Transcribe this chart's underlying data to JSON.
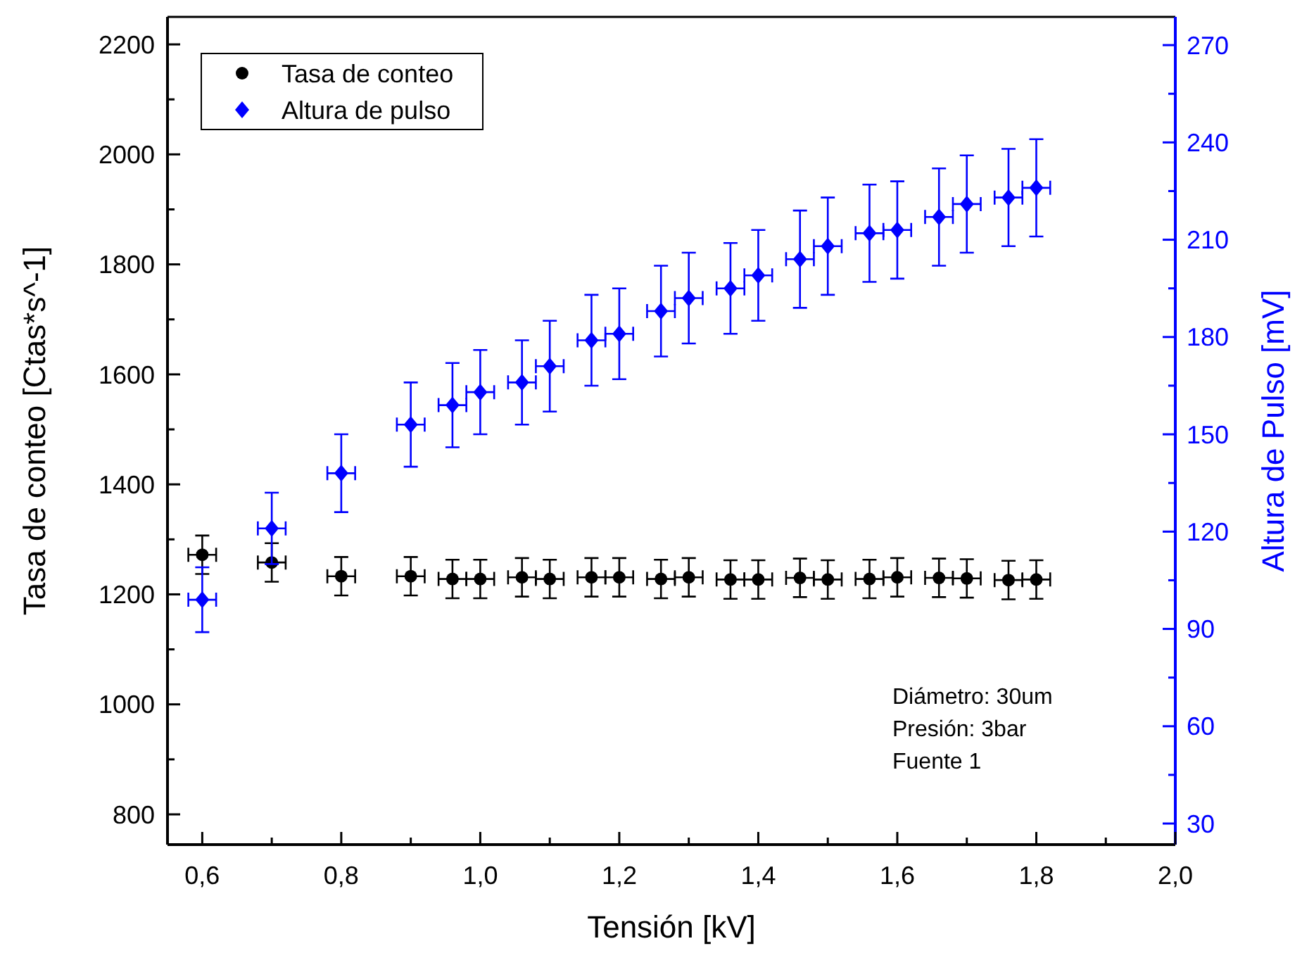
{
  "chart_data": {
    "type": "scatter",
    "xlabel": "Tensión [kV]",
    "ylabel": "Tasa de conteo [Ctas*s^-1]",
    "y2label": "Altura de Pulso [mV]",
    "xlim": [
      0.55,
      2.0
    ],
    "xticks": [
      {
        "value": 0.6,
        "label": "0,6"
      },
      {
        "value": 0.7,
        "label": null
      },
      {
        "value": 0.8,
        "label": "0,8"
      },
      {
        "value": 0.9,
        "label": null
      },
      {
        "value": 1.0,
        "label": "1,0"
      },
      {
        "value": 1.1,
        "label": null
      },
      {
        "value": 1.2,
        "label": "1,2"
      },
      {
        "value": 1.3,
        "label": null
      },
      {
        "value": 1.4,
        "label": "1,4"
      },
      {
        "value": 1.5,
        "label": null
      },
      {
        "value": 1.6,
        "label": "1,6"
      },
      {
        "value": 1.7,
        "label": null
      },
      {
        "value": 1.8,
        "label": "1,8"
      },
      {
        "value": 1.9,
        "label": null
      },
      {
        "value": 2.0,
        "label": "2,0"
      }
    ],
    "ylim": [
      745,
      2250
    ],
    "yticks": [
      800,
      {
        "value": 900,
        "label": null
      },
      1000,
      {
        "value": 1100,
        "label": null
      },
      1200,
      {
        "value": 1300,
        "label": null
      },
      1400,
      {
        "value": 1500,
        "label": null
      },
      1600,
      {
        "value": 1700,
        "label": null
      },
      1800,
      {
        "value": 1900,
        "label": null
      },
      2000,
      {
        "value": 2100,
        "label": null
      },
      2200
    ],
    "y2lim": [
      23.5,
      278.7
    ],
    "y2ticks": [
      30,
      {
        "value": 45,
        "label": null
      },
      60,
      {
        "value": 75,
        "label": null
      },
      90,
      {
        "value": 105,
        "label": null
      },
      120,
      {
        "value": 135,
        "label": null
      },
      150,
      {
        "value": 165,
        "label": null
      },
      180,
      {
        "value": 195,
        "label": null
      },
      210,
      {
        "value": 225,
        "label": null
      },
      240,
      {
        "value": 255,
        "label": null
      },
      270
    ],
    "legend": "top left",
    "grid": false,
    "series": [
      {
        "name": "Tasa de conteo",
        "color": "#000000",
        "marker": "circle",
        "x": [
          0.6,
          0.7,
          0.8,
          0.9,
          0.96,
          1.0,
          1.06,
          1.1,
          1.16,
          1.2,
          1.26,
          1.3,
          1.36,
          1.4,
          1.46,
          1.5,
          1.56,
          1.6,
          1.66,
          1.7,
          1.76,
          1.8
        ],
        "values": [
          1272,
          1258,
          1233,
          1233,
          1228,
          1228,
          1231,
          1228,
          1231,
          1231,
          1228,
          1231,
          1227,
          1227,
          1230,
          1227,
          1228,
          1231,
          1230,
          1229,
          1226,
          1227
        ],
        "errors": [
          35,
          35,
          35,
          35,
          35,
          35,
          35,
          35,
          35,
          35,
          35,
          35,
          35,
          35,
          35,
          35,
          35,
          35,
          35,
          35,
          35,
          35
        ],
        "xerrors": [
          0.02,
          0.02,
          0.02,
          0.02,
          0.02,
          0.02,
          0.02,
          0.02,
          0.02,
          0.02,
          0.02,
          0.02,
          0.02,
          0.02,
          0.02,
          0.02,
          0.02,
          0.02,
          0.02,
          0.02,
          0.02,
          0.02
        ]
      },
      {
        "name": "Altura de pulso",
        "color": "#0000ff",
        "marker": "diamond",
        "axis": "y2",
        "x": [
          0.6,
          0.7,
          0.8,
          0.9,
          0.96,
          1.0,
          1.06,
          1.1,
          1.16,
          1.2,
          1.26,
          1.3,
          1.36,
          1.4,
          1.46,
          1.5,
          1.56,
          1.6,
          1.66,
          1.7,
          1.76,
          1.8
        ],
        "values": [
          99,
          121,
          138,
          153,
          159,
          163,
          166,
          171,
          179,
          181,
          188,
          192,
          195,
          199,
          204,
          208,
          212,
          213,
          217,
          221,
          223,
          226
        ],
        "errors": [
          10,
          11,
          12,
          13,
          13,
          13,
          13,
          14,
          14,
          14,
          14,
          14,
          14,
          14,
          15,
          15,
          15,
          15,
          15,
          15,
          15,
          15
        ],
        "xerrors": [
          0.02,
          0.02,
          0.02,
          0.02,
          0.02,
          0.02,
          0.02,
          0.02,
          0.02,
          0.02,
          0.02,
          0.02,
          0.02,
          0.02,
          0.02,
          0.02,
          0.02,
          0.02,
          0.02,
          0.02,
          0.02,
          0.02
        ]
      }
    ],
    "annotations": [
      "Diámetro: 30um",
      "Presión: 3bar",
      "Fuente 1"
    ]
  }
}
